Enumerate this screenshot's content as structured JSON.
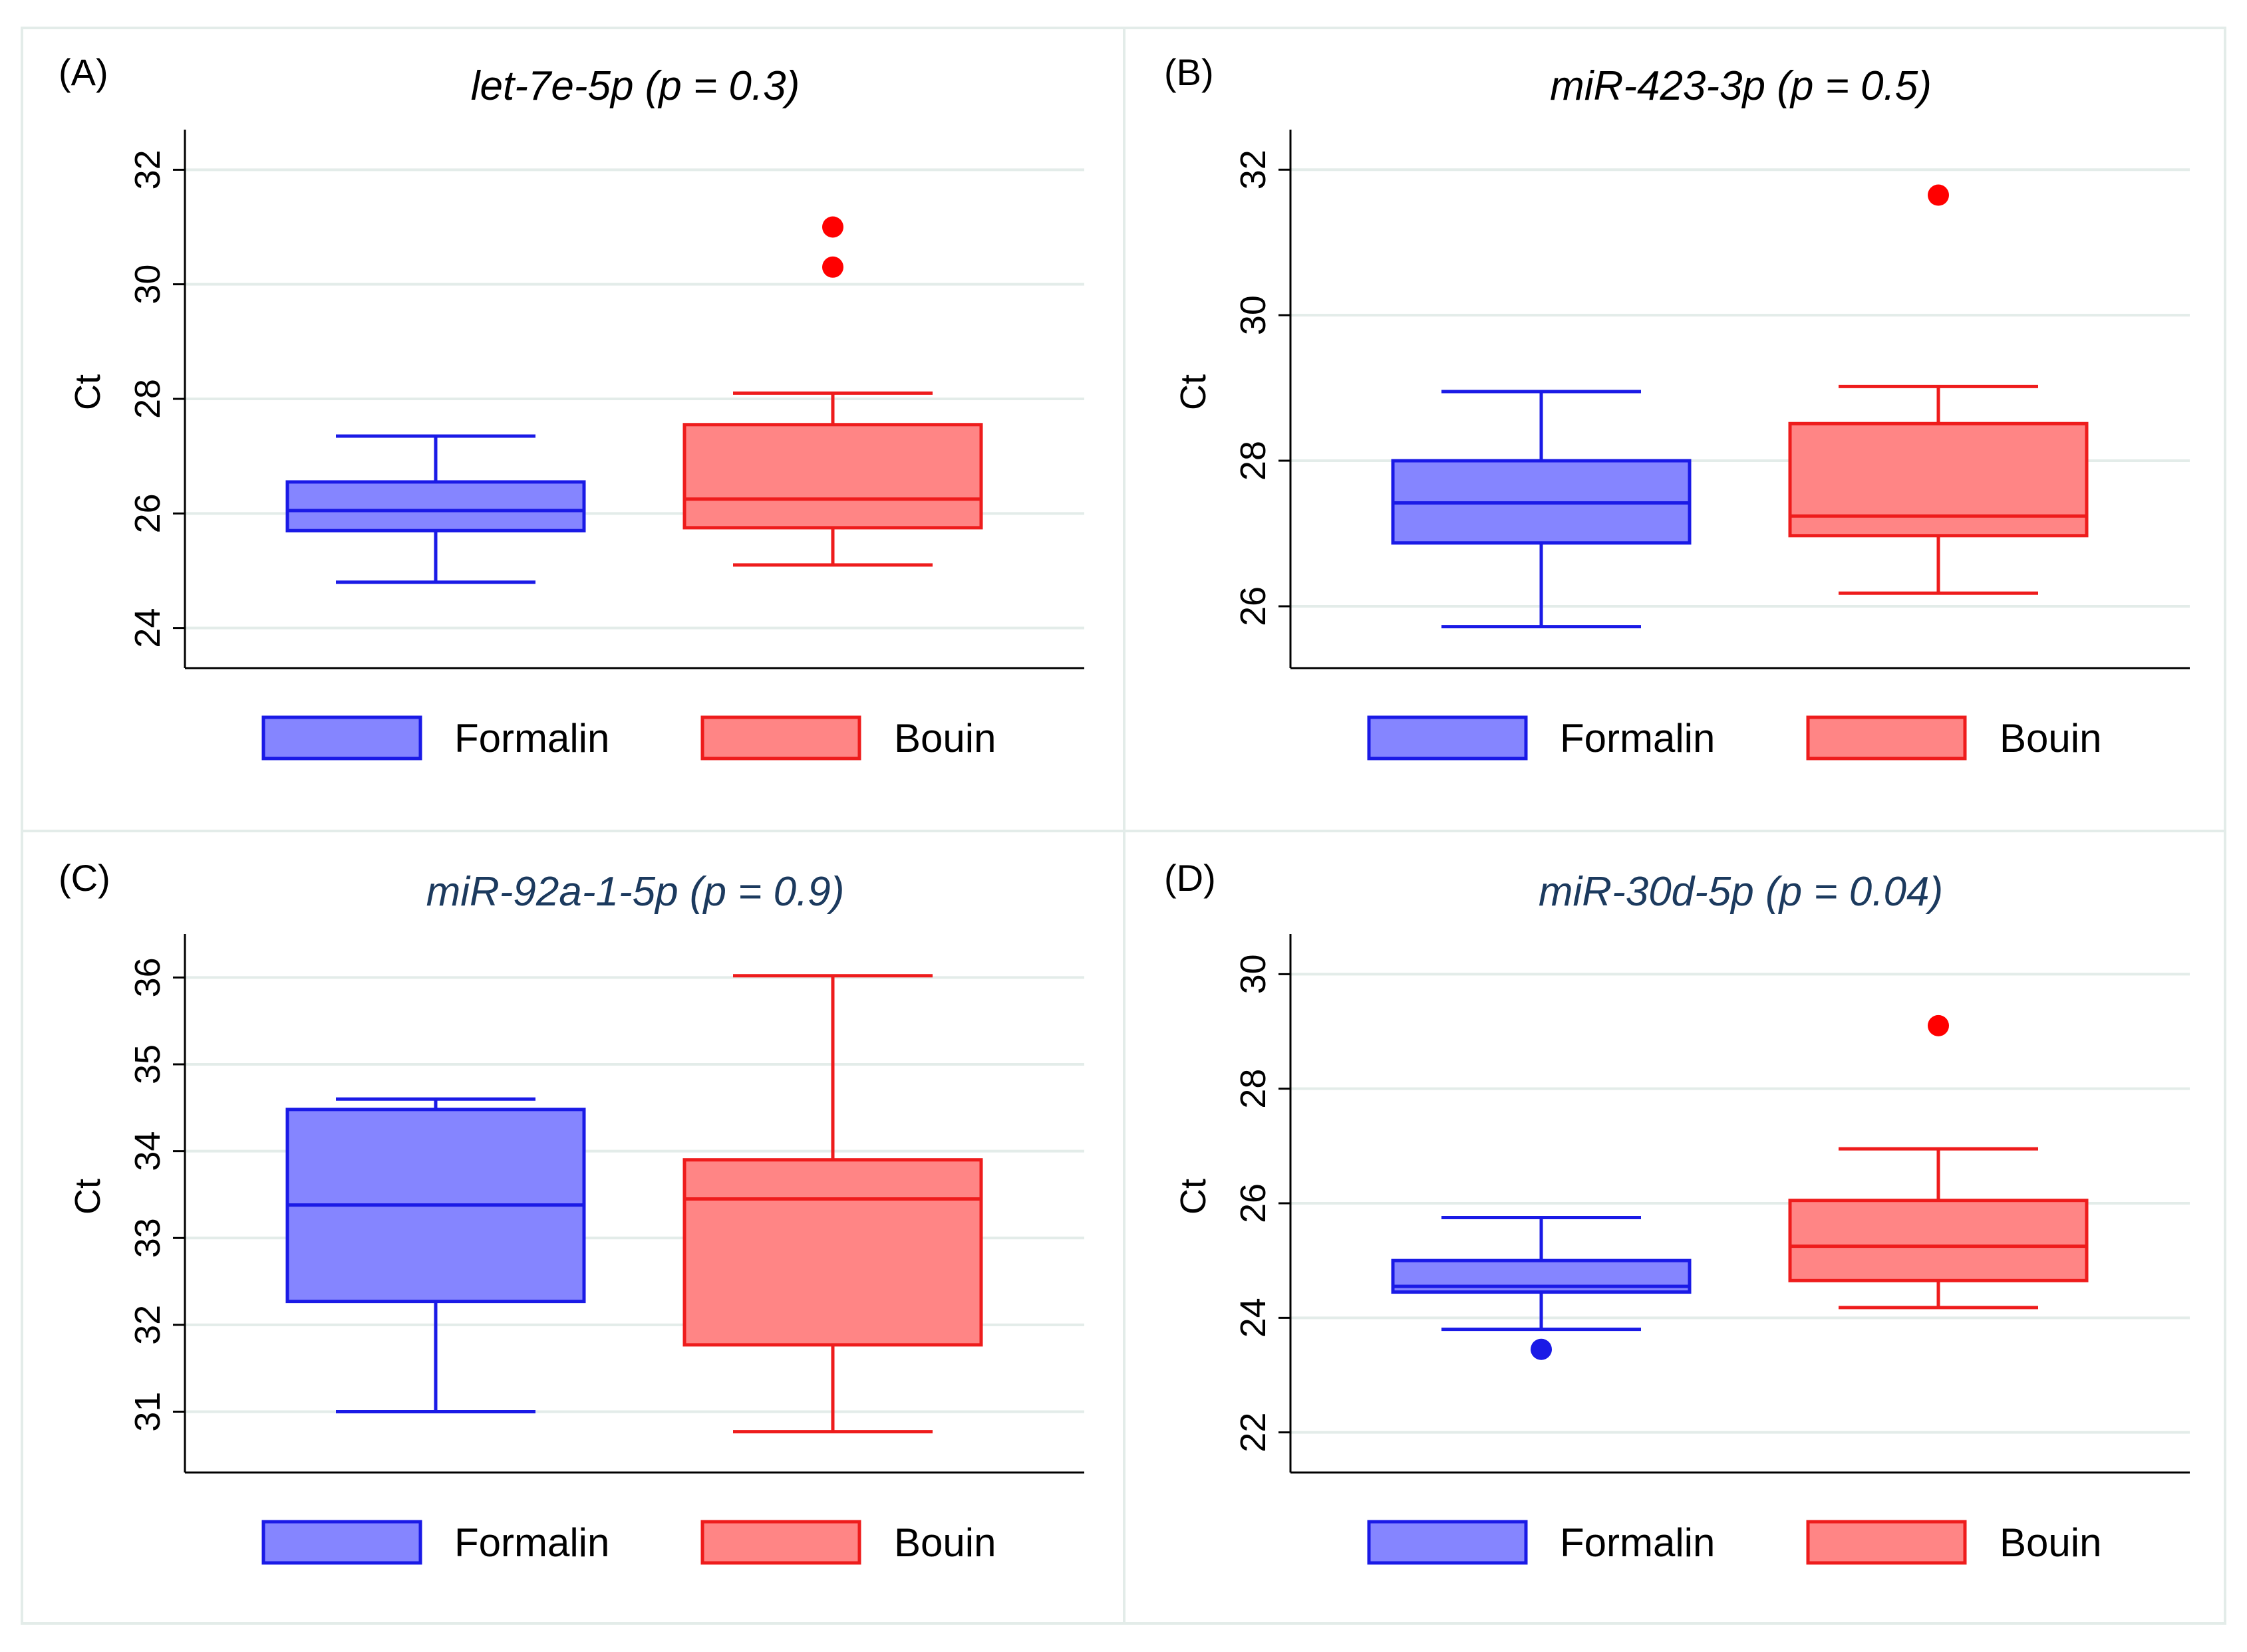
{
  "chart_data": [
    {
      "type": "box",
      "panel_label": "(A)",
      "title": "let-7e-5p (p = 0.3)",
      "title_color": "#000000",
      "ylabel": "Ct",
      "ylim": [
        23.3,
        32.7
      ],
      "yticks": [
        24,
        26,
        28,
        30,
        32
      ],
      "grid": true,
      "legend": {
        "position": "bottom",
        "labels": [
          "Formalin",
          "Bouin"
        ]
      },
      "series": [
        {
          "name": "Formalin",
          "whisker_low": 24.8,
          "q1": 25.7,
          "median": 26.05,
          "q3": 26.55,
          "whisker_high": 27.35,
          "outliers": []
        },
        {
          "name": "Bouin",
          "whisker_low": 25.1,
          "q1": 25.75,
          "median": 26.25,
          "q3": 27.55,
          "whisker_high": 28.1,
          "outliers": [
            30.3,
            31.0
          ]
        }
      ]
    },
    {
      "type": "box",
      "panel_label": "(B)",
      "title": "miR-423-3p (p = 0.5)",
      "title_color": "#000000",
      "ylabel": "Ct",
      "ylim": [
        25.15,
        32.55
      ],
      "yticks": [
        26,
        28,
        30,
        32
      ],
      "grid": true,
      "legend": {
        "position": "bottom",
        "labels": [
          "Formalin",
          "Bouin"
        ]
      },
      "series": [
        {
          "name": "Formalin",
          "whisker_low": 25.72,
          "q1": 26.87,
          "median": 27.42,
          "q3": 28.0,
          "whisker_high": 28.95,
          "outliers": []
        },
        {
          "name": "Bouin",
          "whisker_low": 26.18,
          "q1": 26.97,
          "median": 27.24,
          "q3": 28.51,
          "whisker_high": 29.02,
          "outliers": [
            31.65
          ]
        }
      ]
    },
    {
      "type": "box",
      "panel_label": "(C)",
      "title": "miR-92a-1-5p (p = 0.9)",
      "title_color": "#1c3a5e",
      "ylabel": "Ct",
      "ylim": [
        30.3,
        36.5
      ],
      "yticks": [
        31,
        32,
        33,
        34,
        35,
        36
      ],
      "grid": true,
      "legend": {
        "position": "bottom",
        "labels": [
          "Formalin",
          "Bouin"
        ]
      },
      "series": [
        {
          "name": "Formalin",
          "whisker_low": 31.0,
          "q1": 32.27,
          "median": 33.38,
          "q3": 34.48,
          "whisker_high": 34.6,
          "outliers": []
        },
        {
          "name": "Bouin",
          "whisker_low": 30.77,
          "q1": 31.77,
          "median": 33.45,
          "q3": 33.9,
          "whisker_high": 36.02,
          "outliers": []
        }
      ]
    },
    {
      "type": "box",
      "panel_label": "(D)",
      "title": "miR-30d-5p (p = 0.04)",
      "title_color": "#1c3a5e",
      "ylabel": "Ct",
      "ylim": [
        21.3,
        30.7
      ],
      "yticks": [
        22,
        24,
        26,
        28,
        30
      ],
      "grid": true,
      "legend": {
        "position": "bottom",
        "labels": [
          "Formalin",
          "Bouin"
        ]
      },
      "series": [
        {
          "name": "Formalin",
          "whisker_low": 23.8,
          "q1": 24.45,
          "median": 24.55,
          "q3": 25.0,
          "whisker_high": 25.75,
          "outliers": [
            23.45
          ]
        },
        {
          "name": "Bouin",
          "whisker_low": 24.18,
          "q1": 24.65,
          "median": 25.25,
          "q3": 26.05,
          "whisker_high": 26.95,
          "outliers": [
            29.1
          ]
        }
      ]
    }
  ],
  "colors": {
    "formalin_fill": "#8585ff",
    "formalin_stroke": "#1a1ae6",
    "bouin_fill": "#ff8585",
    "bouin_stroke": "#ee1c1c",
    "bouin_outlier": "#ff0000",
    "grid": "#e3ece9",
    "frame": "#e3ece9"
  }
}
